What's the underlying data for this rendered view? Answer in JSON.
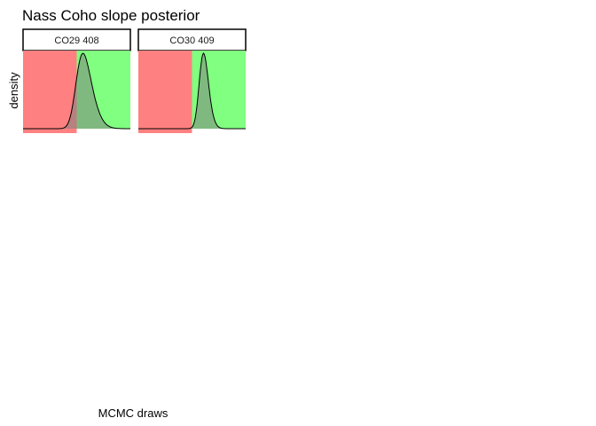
{
  "chart_data": {
    "type": "area",
    "title": "Nass Coho slope posterior",
    "xlabel": "MCMC draws",
    "ylabel": "density",
    "grid": false,
    "region_colors": {
      "below_zero": "#ff8080",
      "above_zero": "#80ff80"
    },
    "curve_fill_color": "#808080",
    "panels": [
      {
        "label": "CO29 408",
        "xlim": [
          -1.0,
          1.0
        ],
        "zero_at": 0.0,
        "density": {
          "mean": 0.0,
          "sd": 0.22,
          "skew": 2.0
        }
      },
      {
        "label": "CO30 409",
        "xlim": [
          -1.0,
          1.0
        ],
        "zero_at": 0.0,
        "density": {
          "mean": 0.15,
          "sd": 0.12,
          "skew": 1.5
        }
      }
    ]
  }
}
